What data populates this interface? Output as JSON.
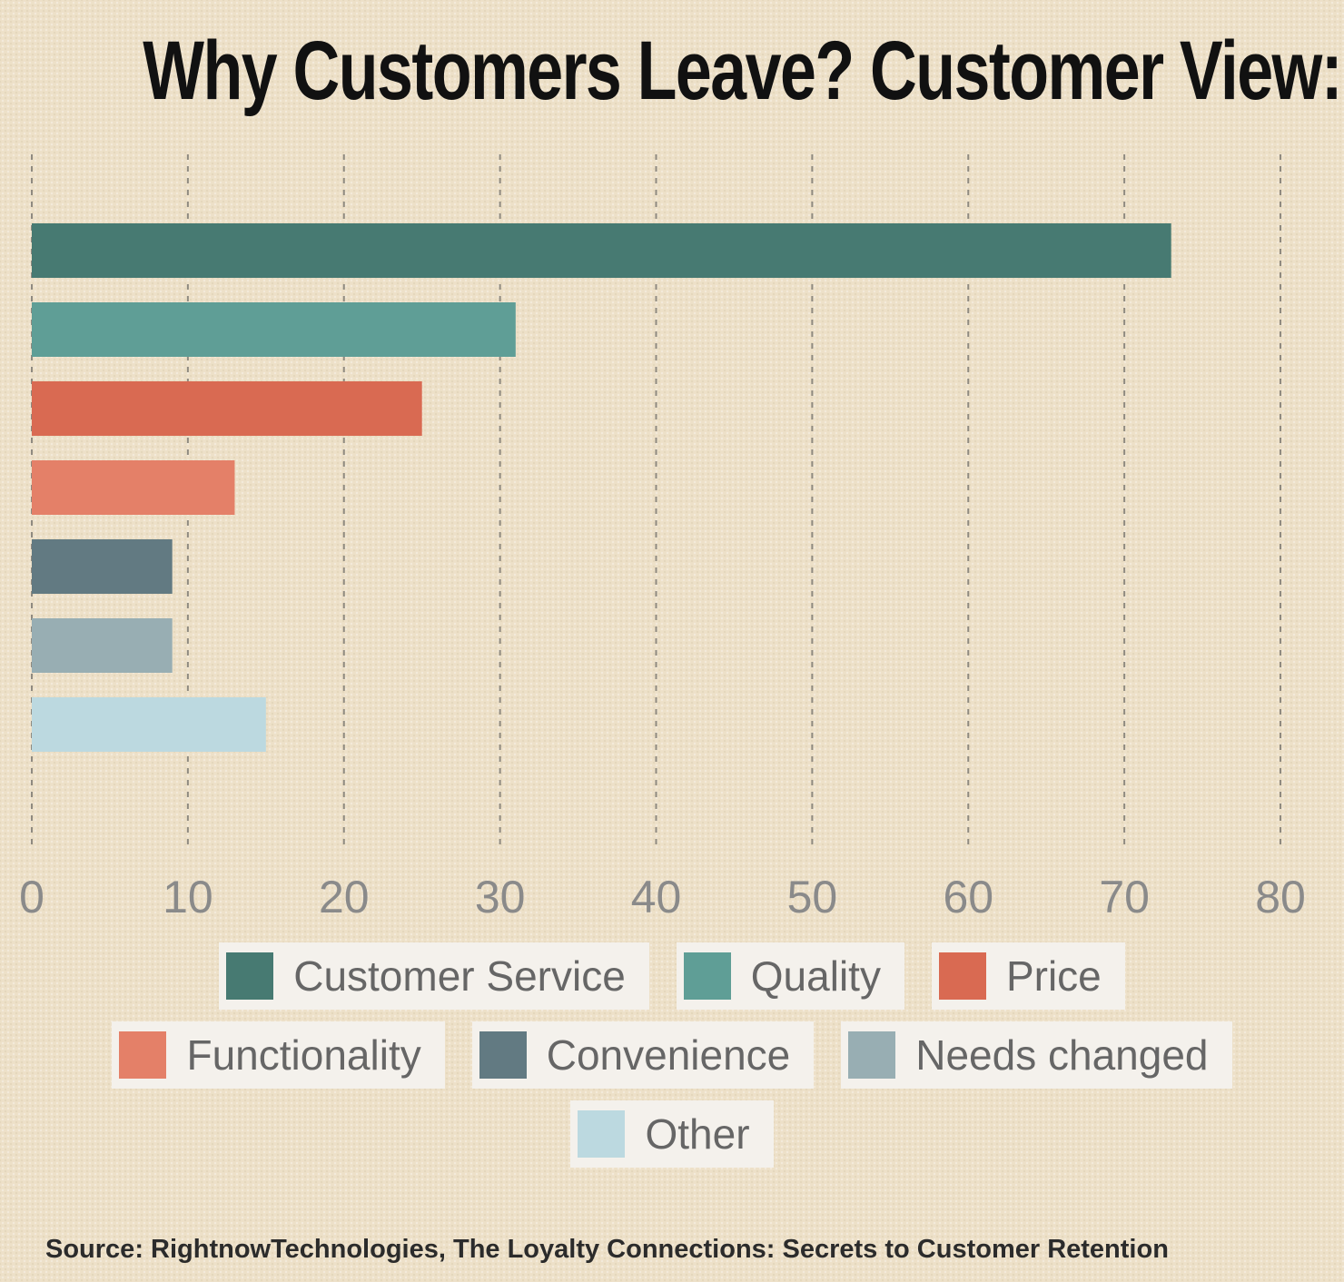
{
  "chart_data": {
    "type": "bar",
    "orientation": "horizontal",
    "title": "Why Customers Leave? Customer View:",
    "categories": [
      "Customer Service",
      "Quality",
      "Price",
      "Functionality",
      "Convenience",
      "Needs changed",
      "Other"
    ],
    "values": [
      73,
      31,
      25,
      13,
      9,
      9,
      15
    ],
    "colors": [
      "#477a72",
      "#5f9e96",
      "#d96a52",
      "#e48068",
      "#627a82",
      "#98aeb3",
      "#bcd9e0"
    ],
    "xlim": [
      0,
      80
    ],
    "xticks": [
      "0",
      "10",
      "20",
      "30",
      "40",
      "50",
      "60",
      "70",
      "80"
    ],
    "grid": "vertical dashed",
    "legend_placement": "bottom"
  },
  "legend_rows": [
    [
      {
        "label": "Customer Service",
        "color": "#477a72"
      },
      {
        "label": "Quality",
        "color": "#5f9e96"
      },
      {
        "label": "Price",
        "color": "#d96a52"
      }
    ],
    [
      {
        "label": "Functionality",
        "color": "#e48068"
      },
      {
        "label": "Convenience",
        "color": "#627a82"
      },
      {
        "label": "Needs changed",
        "color": "#98aeb3"
      }
    ],
    [
      {
        "label": "Other",
        "color": "#bcd9e0"
      }
    ]
  ],
  "source": "Source: RightnowTechnologies, The Loyalty Connections: Secrets to Customer Retention"
}
